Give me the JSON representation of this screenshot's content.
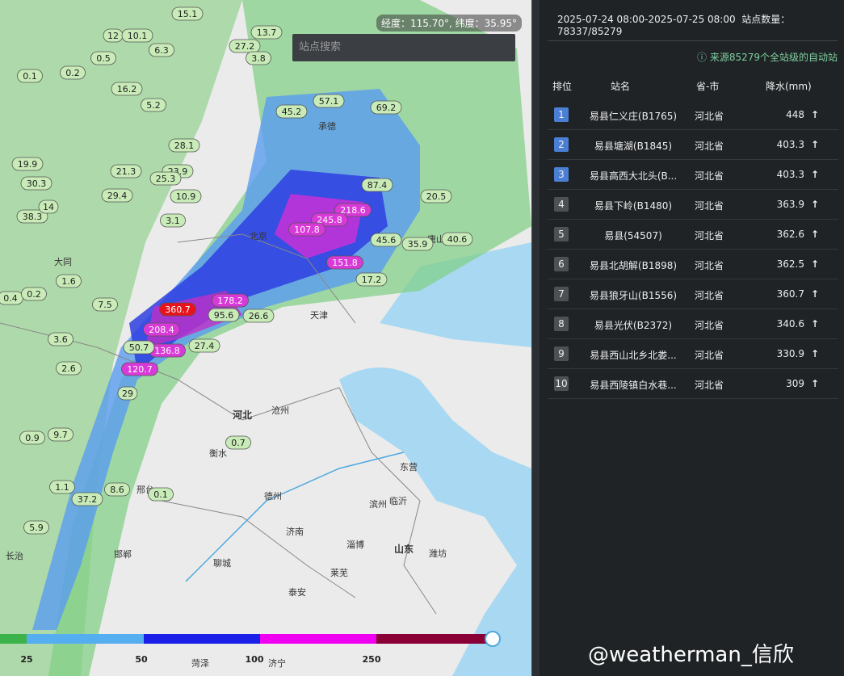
{
  "map": {
    "coordinate": "经度：115.70°, 纬度：35.95°",
    "search_placeholder": "站点搜索",
    "cities": [
      "北京",
      "天津",
      "河北",
      "沧州",
      "衡水",
      "德州",
      "济南",
      "聊城",
      "泰安",
      "莱芜",
      "淄博",
      "山东",
      "潍坊",
      "东营",
      "滨州",
      "临沂",
      "邯郸",
      "邢台",
      "长治",
      "菏泽",
      "济宁",
      "大同",
      "承德",
      "唐山"
    ],
    "stations": [
      "15.1",
      "13.7",
      "27.2",
      "12",
      "10.1",
      "6.3",
      "0.5",
      "3.8",
      "0.1",
      "0.2",
      "16.2",
      "5.2",
      "45.2",
      "57.1",
      "69.2",
      "19.9",
      "30.3",
      "21.3",
      "28.1",
      "23.9",
      "25.3",
      "38.3",
      "14",
      "29.4",
      "218.6",
      "245.8",
      "107.8",
      "151.8",
      "178.2",
      "208.4",
      "136.8",
      "120.7",
      "95.6",
      "360.7",
      "50.7",
      "29",
      "26.6",
      "27.4",
      "17.2",
      "87.4",
      "45.6",
      "40.6",
      "35.9",
      "20.5",
      "10.9",
      "3.1",
      "0.7",
      "0.1",
      "1.1",
      "5.9",
      "37.2",
      "8.6",
      "3.6",
      "0.9",
      "9.7",
      "2.6",
      "1.6",
      "0.4",
      "0.2",
      "7.5"
    ],
    "legend_ticks": [
      "25",
      "50",
      "100",
      "250"
    ]
  },
  "panel": {
    "date_range": "2025-07-24 08:00-2025-07-25 08:00",
    "station_count": "站点数量：78337/85279",
    "source_note": "来源85279个全站级的自动站",
    "columns": [
      "排位",
      "站名",
      "省-市",
      "降水(mm)"
    ],
    "rows": [
      [
        "1",
        "易县仁义庄(B1765)",
        "河北省",
        "448"
      ],
      [
        "2",
        "易县塘湖(B1845)",
        "河北省",
        "403.3"
      ],
      [
        "3",
        "易县高西大北头(B...",
        "河北省",
        "403.3"
      ],
      [
        "4",
        "易县下岭(B1480)",
        "河北省",
        "363.9"
      ],
      [
        "5",
        "易县(54507)",
        "河北省",
        "362.6"
      ],
      [
        "6",
        "易县北胡解(B1898)",
        "河北省",
        "362.5"
      ],
      [
        "7",
        "易县狼牙山(B1556)",
        "河北省",
        "360.7"
      ],
      [
        "8",
        "易县光伏(B2372)",
        "河北省",
        "340.6"
      ],
      [
        "9",
        "易县西山北乡北娄...",
        "河北省",
        "330.9"
      ],
      [
        "10",
        "易县西陵镇白水巷...",
        "河北省",
        "309"
      ]
    ]
  },
  "watermark": "@weatherman_信欣"
}
